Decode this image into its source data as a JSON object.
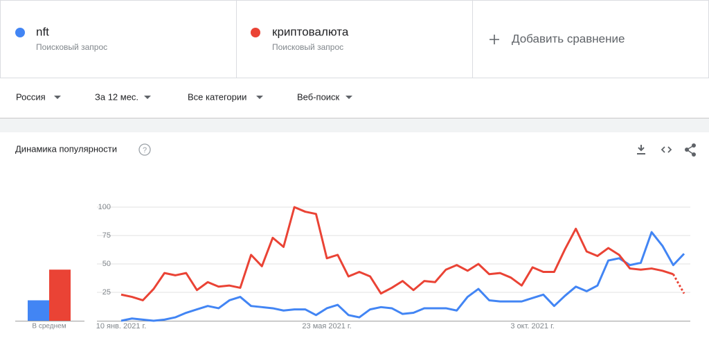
{
  "comparison": {
    "add_label": "Добавить сравнение"
  },
  "filters": [
    "Россия",
    "За 12 мес.",
    "Все категории",
    "Веб-поиск"
  ],
  "section_title": "Динамика популярности",
  "chart_data": [
    {
      "type": "line",
      "categories": [
        "10 янв. 2021 г.",
        null,
        null,
        null,
        null,
        null,
        null,
        null,
        null,
        null,
        null,
        null,
        null,
        null,
        null,
        null,
        null,
        null,
        null,
        "23 мая 2021 г.",
        null,
        null,
        null,
        null,
        null,
        null,
        null,
        null,
        null,
        null,
        null,
        null,
        null,
        null,
        null,
        null,
        null,
        null,
        "3 окт. 2021 г.",
        null,
        null,
        null,
        null,
        null,
        null,
        null,
        null,
        null,
        null,
        null,
        null,
        null,
        null
      ],
      "series": [
        {
          "name": "nft",
          "description": "Поисковый запрос",
          "color": "#4285f4",
          "values": [
            0,
            2,
            1,
            0,
            1,
            3,
            7,
            10,
            13,
            11,
            18,
            21,
            13,
            12,
            11,
            9,
            10,
            10,
            5,
            11,
            14,
            5,
            3,
            10,
            12,
            11,
            6,
            7,
            11,
            11,
            11,
            9,
            21,
            28,
            18,
            17,
            17,
            17,
            20,
            23,
            13,
            22,
            30,
            26,
            31,
            53,
            55,
            49,
            51,
            78,
            66,
            49,
            59
          ]
        },
        {
          "name": "криптовалюта",
          "description": "Поисковый запрос",
          "color": "#ea4335",
          "partial_last": true,
          "values": [
            23,
            21,
            18,
            28,
            42,
            40,
            42,
            27,
            34,
            30,
            31,
            29,
            58,
            48,
            73,
            65,
            100,
            96,
            94,
            55,
            58,
            39,
            43,
            39,
            24,
            29,
            35,
            27,
            35,
            34,
            45,
            49,
            44,
            50,
            41,
            42,
            38,
            31,
            47,
            43,
            43,
            63,
            81,
            61,
            57,
            64,
            58,
            46,
            45,
            46,
            44,
            41,
            24
          ]
        }
      ],
      "ylim": [
        0,
        100
      ],
      "yticks": [
        25,
        50,
        75,
        100
      ],
      "grid": true
    },
    {
      "type": "bar",
      "categories": [
        "В среднем"
      ],
      "series": [
        {
          "color": "#4285f4",
          "values": [
            18
          ]
        },
        {
          "color": "#ea4335",
          "values": [
            45
          ]
        }
      ],
      "ylim": [
        0,
        100
      ]
    }
  ]
}
